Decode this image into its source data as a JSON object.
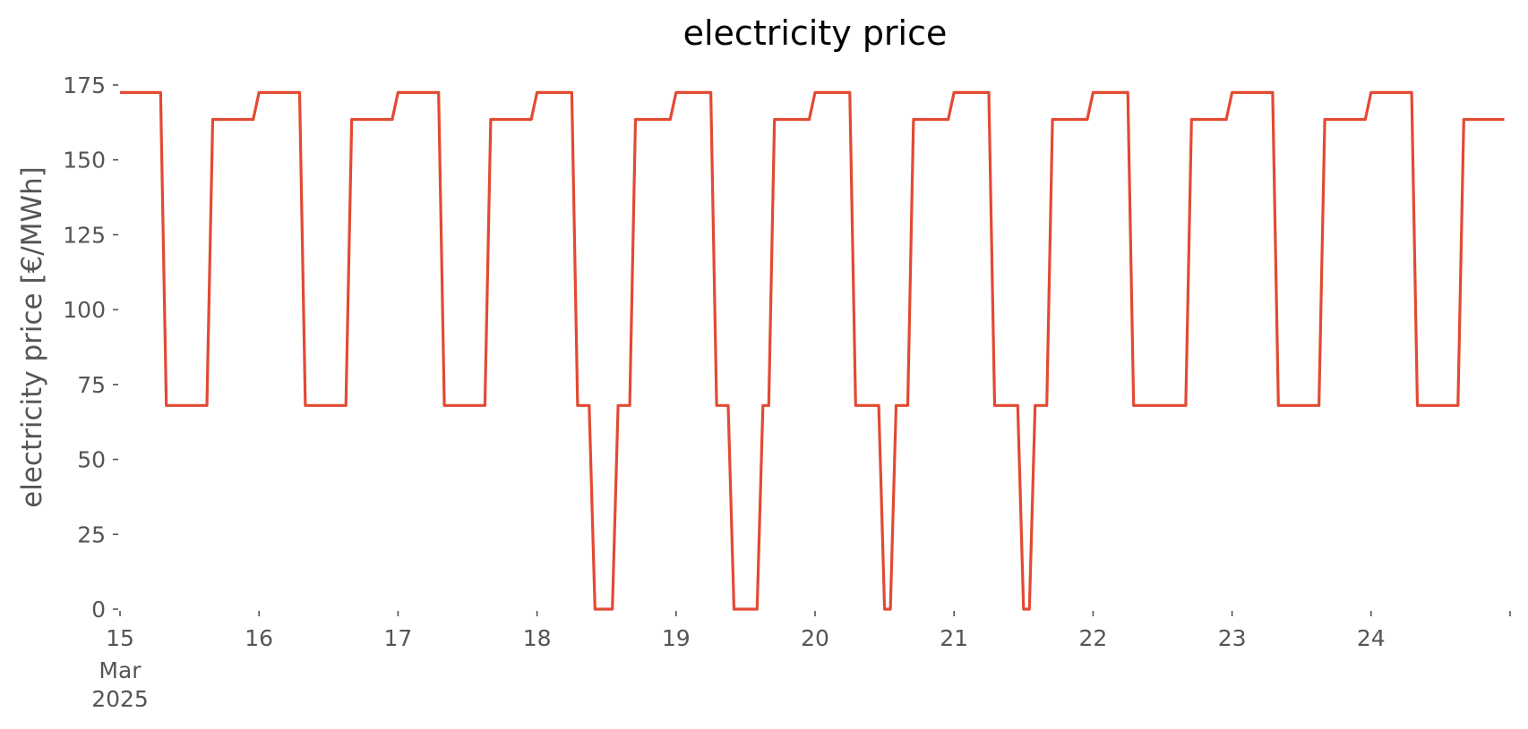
{
  "chart_data": {
    "type": "line",
    "title": "electricity price",
    "xlabel": "",
    "ylabel": "electricity price [€/MWh]",
    "grid": false,
    "legend": "none",
    "xlim": [
      "2025-03-15T00:00",
      "2025-03-24T23:00"
    ],
    "ylim": [
      0,
      175
    ],
    "yticks": [
      0,
      25,
      50,
      75,
      100,
      125,
      150,
      175
    ],
    "xticks": [
      {
        "date": "2025-03-15",
        "label": "15",
        "sublabels": [
          "Mar",
          "2025"
        ]
      },
      {
        "date": "2025-03-16",
        "label": "16"
      },
      {
        "date": "2025-03-17",
        "label": "17"
      },
      {
        "date": "2025-03-18",
        "label": "18"
      },
      {
        "date": "2025-03-19",
        "label": "19"
      },
      {
        "date": "2025-03-20",
        "label": "20"
      },
      {
        "date": "2025-03-21",
        "label": "21"
      },
      {
        "date": "2025-03-22",
        "label": "22"
      },
      {
        "date": "2025-03-23",
        "label": "23"
      },
      {
        "date": "2025-03-24",
        "label": "24"
      },
      {
        "date": "2025-03-25",
        "label": ""
      }
    ],
    "colors": {
      "series": "#E24A33",
      "text": "#555555"
    },
    "series": [
      {
        "values": [
          172.5,
          172.5,
          172.5,
          172.5,
          172.5,
          172.5,
          172.5,
          172.5,
          68,
          68,
          68,
          68,
          68,
          68,
          68,
          68,
          163.5,
          163.5,
          163.5,
          163.5,
          163.5,
          163.5,
          163.5,
          163.5,
          172.5,
          172.5,
          172.5,
          172.5,
          172.5,
          172.5,
          172.5,
          172.5,
          68,
          68,
          68,
          68,
          68,
          68,
          68,
          68,
          163.5,
          163.5,
          163.5,
          163.5,
          163.5,
          163.5,
          163.5,
          163.5,
          172.5,
          172.5,
          172.5,
          172.5,
          172.5,
          172.5,
          172.5,
          172.5,
          68,
          68,
          68,
          68,
          68,
          68,
          68,
          68,
          163.5,
          163.5,
          163.5,
          163.5,
          163.5,
          163.5,
          163.5,
          163.5,
          172.5,
          172.5,
          172.5,
          172.5,
          172.5,
          172.5,
          172.5,
          68,
          68,
          68,
          0,
          0,
          0,
          0,
          68,
          68,
          68,
          163.5,
          163.5,
          163.5,
          163.5,
          163.5,
          163.5,
          163.5,
          172.5,
          172.5,
          172.5,
          172.5,
          172.5,
          172.5,
          172.5,
          68,
          68,
          68,
          0,
          0,
          0,
          0,
          0,
          68,
          68,
          163.5,
          163.5,
          163.5,
          163.5,
          163.5,
          163.5,
          163.5,
          172.5,
          172.5,
          172.5,
          172.5,
          172.5,
          172.5,
          172.5,
          68,
          68,
          68,
          68,
          68,
          0,
          0,
          68,
          68,
          68,
          163.5,
          163.5,
          163.5,
          163.5,
          163.5,
          163.5,
          163.5,
          172.5,
          172.5,
          172.5,
          172.5,
          172.5,
          172.5,
          172.5,
          68,
          68,
          68,
          68,
          68,
          0,
          0,
          68,
          68,
          68,
          163.5,
          163.5,
          163.5,
          163.5,
          163.5,
          163.5,
          163.5,
          172.5,
          172.5,
          172.5,
          172.5,
          172.5,
          172.5,
          172.5,
          68,
          68,
          68,
          68,
          68,
          68,
          68,
          68,
          68,
          68,
          163.5,
          163.5,
          163.5,
          163.5,
          163.5,
          163.5,
          163.5,
          172.5,
          172.5,
          172.5,
          172.5,
          172.5,
          172.5,
          172.5,
          172.5,
          68,
          68,
          68,
          68,
          68,
          68,
          68,
          68,
          163.5,
          163.5,
          163.5,
          163.5,
          163.5,
          163.5,
          163.5,
          163.5,
          172.5,
          172.5,
          172.5,
          172.5,
          172.5,
          172.5,
          172.5,
          172.5,
          68,
          68,
          68,
          68,
          68,
          68,
          68,
          68,
          163.5,
          163.5,
          163.5,
          163.5,
          163.5,
          163.5,
          163.5,
          163.5
        ]
      }
    ]
  }
}
